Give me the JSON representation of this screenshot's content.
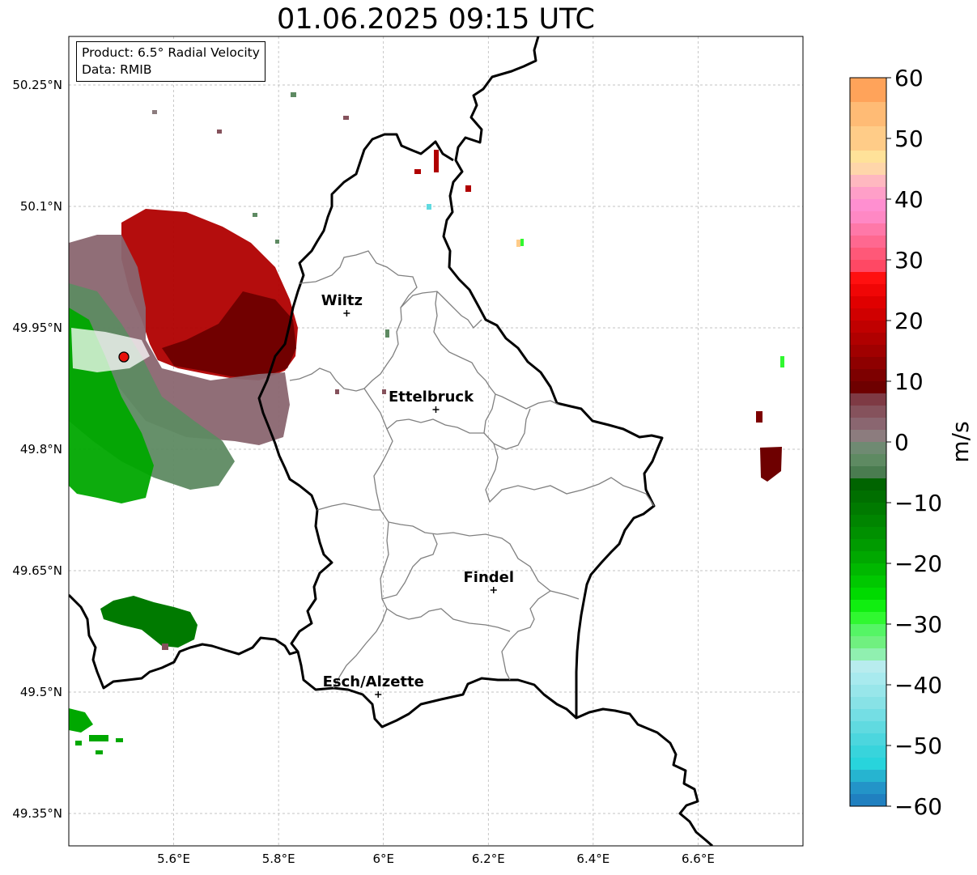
{
  "title": "01.06.2025 09:15 UTC",
  "info": {
    "product": "Product: 6.5° Radial Velocity",
    "data": "Data: RMIB"
  },
  "map": {
    "lon_range": [
      5.4,
      6.8
    ],
    "lat_range": [
      49.31,
      50.31
    ],
    "lon_ticks": [
      {
        "v": 5.6,
        "label": "5.6°E"
      },
      {
        "v": 5.8,
        "label": "5.8°E"
      },
      {
        "v": 6.0,
        "label": "6°E"
      },
      {
        "v": 6.2,
        "label": "6.2°E"
      },
      {
        "v": 6.4,
        "label": "6.4°E"
      },
      {
        "v": 6.6,
        "label": "6.6°E"
      }
    ],
    "lat_ticks": [
      {
        "v": 49.35,
        "label": "49.35°N"
      },
      {
        "v": 49.5,
        "label": "49.5°N"
      },
      {
        "v": 49.65,
        "label": "49.65°N"
      },
      {
        "v": 49.8,
        "label": "49.8°N"
      },
      {
        "v": 49.95,
        "label": "49.95°N"
      },
      {
        "v": 50.1,
        "label": "50.1°N"
      },
      {
        "v": 50.25,
        "label": "50.25°N"
      }
    ],
    "grid": true,
    "places": [
      {
        "name": "Wiltz",
        "lon": 5.93,
        "lat": 49.968
      },
      {
        "name": "Ettelbruck",
        "lon": 6.1,
        "lat": 49.849
      },
      {
        "name": "Findel",
        "lon": 6.21,
        "lat": 49.626
      },
      {
        "name": "Esch/Alzette",
        "lon": 5.99,
        "lat": 49.497
      }
    ],
    "radar_site": {
      "lon": 5.505,
      "lat": 49.914
    },
    "colors": {
      "radar_site": "#e8120c",
      "border": "#000000",
      "canton_lines": "#808080"
    }
  },
  "colorbar": {
    "unit": "m/s",
    "range": [
      -60,
      60
    ],
    "ticks": [
      {
        "v": 60,
        "label": "60"
      },
      {
        "v": 50,
        "label": "50"
      },
      {
        "v": 40,
        "label": "40"
      },
      {
        "v": 30,
        "label": "30"
      },
      {
        "v": 20,
        "label": "20"
      },
      {
        "v": 10,
        "label": "10"
      },
      {
        "v": 0,
        "label": "0"
      },
      {
        "v": -10,
        "label": "−10"
      },
      {
        "v": -20,
        "label": "−20"
      },
      {
        "v": -30,
        "label": "−30"
      },
      {
        "v": -40,
        "label": "−40"
      },
      {
        "v": -50,
        "label": "−50"
      },
      {
        "v": -60,
        "label": "−60"
      }
    ],
    "bands": [
      {
        "from": 56,
        "to": 60,
        "color": "#ffa35a"
      },
      {
        "from": 52,
        "to": 56,
        "color": "#ffbb75"
      },
      {
        "from": 48,
        "to": 52,
        "color": "#ffcc88"
      },
      {
        "from": 46,
        "to": 48,
        "color": "#ffe299"
      },
      {
        "from": 44,
        "to": 46,
        "color": "#ffd6aa"
      },
      {
        "from": 42,
        "to": 44,
        "color": "#ffb8c0"
      },
      {
        "from": 40,
        "to": 42,
        "color": "#ff9fc8"
      },
      {
        "from": 38,
        "to": 40,
        "color": "#ff8fd0"
      },
      {
        "from": 36,
        "to": 38,
        "color": "#ff88c4"
      },
      {
        "from": 34,
        "to": 36,
        "color": "#ff78a8"
      },
      {
        "from": 32,
        "to": 34,
        "color": "#ff6890"
      },
      {
        "from": 30,
        "to": 32,
        "color": "#ff5878"
      },
      {
        "from": 28,
        "to": 30,
        "color": "#ff4864"
      },
      {
        "from": 26,
        "to": 28,
        "color": "#ff1010"
      },
      {
        "from": 24,
        "to": 26,
        "color": "#f00606"
      },
      {
        "from": 22,
        "to": 24,
        "color": "#e00000"
      },
      {
        "from": 20,
        "to": 22,
        "color": "#d00000"
      },
      {
        "from": 18,
        "to": 20,
        "color": "#c00000"
      },
      {
        "from": 16,
        "to": 18,
        "color": "#b00000"
      },
      {
        "from": 14,
        "to": 16,
        "color": "#a00000"
      },
      {
        "from": 12,
        "to": 14,
        "color": "#8e0000"
      },
      {
        "from": 10,
        "to": 12,
        "color": "#7d0000"
      },
      {
        "from": 8,
        "to": 10,
        "color": "#6e0000"
      },
      {
        "from": 6,
        "to": 8,
        "color": "#7e3a44"
      },
      {
        "from": 4,
        "to": 6,
        "color": "#85525c"
      },
      {
        "from": 2,
        "to": 4,
        "color": "#8a6670"
      },
      {
        "from": 0,
        "to": 2,
        "color": "#8c7c7e"
      },
      {
        "from": -2,
        "to": 0,
        "color": "#6f8a72"
      },
      {
        "from": -4,
        "to": -2,
        "color": "#5e8a62"
      },
      {
        "from": -6,
        "to": -4,
        "color": "#4a7c50"
      },
      {
        "from": -8,
        "to": -6,
        "color": "#006400"
      },
      {
        "from": -10,
        "to": -8,
        "color": "#006f00"
      },
      {
        "from": -12,
        "to": -10,
        "color": "#007a00"
      },
      {
        "from": -14,
        "to": -12,
        "color": "#008500"
      },
      {
        "from": -16,
        "to": -14,
        "color": "#009000"
      },
      {
        "from": -18,
        "to": -16,
        "color": "#009b00"
      },
      {
        "from": -20,
        "to": -18,
        "color": "#00a800"
      },
      {
        "from": -22,
        "to": -20,
        "color": "#00b800"
      },
      {
        "from": -24,
        "to": -22,
        "color": "#00c800"
      },
      {
        "from": -26,
        "to": -24,
        "color": "#00da00"
      },
      {
        "from": -28,
        "to": -26,
        "color": "#10ee10"
      },
      {
        "from": -30,
        "to": -28,
        "color": "#30f830"
      },
      {
        "from": -32,
        "to": -30,
        "color": "#55f565"
      },
      {
        "from": -34,
        "to": -32,
        "color": "#70f080"
      },
      {
        "from": -36,
        "to": -34,
        "color": "#90f0b0"
      },
      {
        "from": -38,
        "to": -36,
        "color": "#b8ecee"
      },
      {
        "from": -40,
        "to": -38,
        "color": "#a8eaee"
      },
      {
        "from": -42,
        "to": -40,
        "color": "#98e6ea"
      },
      {
        "from": -44,
        "to": -42,
        "color": "#88e2e6"
      },
      {
        "from": -46,
        "to": -44,
        "color": "#74dee4"
      },
      {
        "from": -48,
        "to": -46,
        "color": "#60dae0"
      },
      {
        "from": -50,
        "to": -48,
        "color": "#4cd6de"
      },
      {
        "from": -52,
        "to": -50,
        "color": "#38d4dc"
      },
      {
        "from": -54,
        "to": -52,
        "color": "#28d4dc"
      },
      {
        "from": -56,
        "to": -54,
        "color": "#26b4d0"
      },
      {
        "from": -58,
        "to": -56,
        "color": "#2394c8"
      },
      {
        "from": -60,
        "to": -58,
        "color": "#2080c0"
      }
    ]
  }
}
